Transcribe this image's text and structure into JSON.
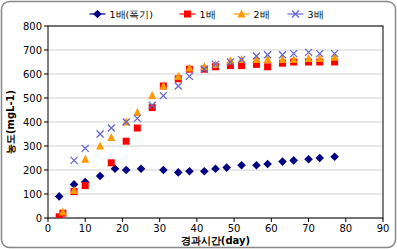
{
  "chart_data": {
    "type": "scatter",
    "x_label": "경과시간(day)",
    "y_label": "농도(mgL-1)",
    "xlim": [
      0,
      90
    ],
    "xticks": [
      0,
      10,
      20,
      30,
      40,
      50,
      60,
      70,
      80,
      90
    ],
    "ylim": [
      0,
      800
    ],
    "yticks": [
      0,
      100,
      200,
      300,
      400,
      500,
      600,
      700,
      800
    ],
    "grid": true,
    "legend": "top",
    "series": [
      {
        "name": "1배(폭기)",
        "color": "#000080",
        "marker": "diamond",
        "x": [
          3,
          7,
          10,
          14,
          18,
          21,
          25,
          31,
          35,
          38,
          42,
          45,
          48,
          52,
          56,
          59,
          63,
          66,
          70,
          73,
          77
        ],
        "values": [
          90,
          140,
          150,
          175,
          205,
          200,
          205,
          200,
          190,
          195,
          195,
          205,
          210,
          220,
          220,
          225,
          235,
          240,
          245,
          250,
          255
        ]
      },
      {
        "name": "1배",
        "color": "#ff0000",
        "marker": "square",
        "x": [
          3,
          4,
          7,
          10,
          17,
          21,
          24,
          28,
          31,
          35,
          38,
          42,
          45,
          49,
          52,
          56,
          59,
          63,
          66,
          70,
          73,
          77
        ],
        "values": [
          5,
          20,
          110,
          135,
          230,
          320,
          375,
          460,
          550,
          580,
          620,
          620,
          630,
          635,
          635,
          640,
          630,
          645,
          650,
          650,
          650,
          650
        ]
      },
      {
        "name": "2배",
        "color": "#ff9900",
        "marker": "triangle",
        "x": [
          4,
          7,
          10,
          14,
          17,
          21,
          24,
          28,
          31,
          35,
          38,
          42,
          45,
          49,
          52,
          56,
          59,
          63,
          66,
          70,
          73,
          77
        ],
        "values": [
          25,
          115,
          245,
          300,
          335,
          400,
          440,
          510,
          550,
          590,
          625,
          630,
          640,
          655,
          660,
          660,
          660,
          660,
          660,
          665,
          665,
          670
        ]
      },
      {
        "name": "3배",
        "color": "#6666cc",
        "marker": "x",
        "x": [
          7,
          10,
          14,
          17,
          21,
          24,
          28,
          31,
          35,
          38,
          42,
          45,
          49,
          52,
          56,
          59,
          63,
          66,
          70,
          73,
          77
        ],
        "values": [
          240,
          290,
          350,
          375,
          400,
          415,
          470,
          510,
          550,
          590,
          620,
          640,
          650,
          660,
          675,
          680,
          680,
          685,
          690,
          685,
          685
        ]
      }
    ]
  }
}
